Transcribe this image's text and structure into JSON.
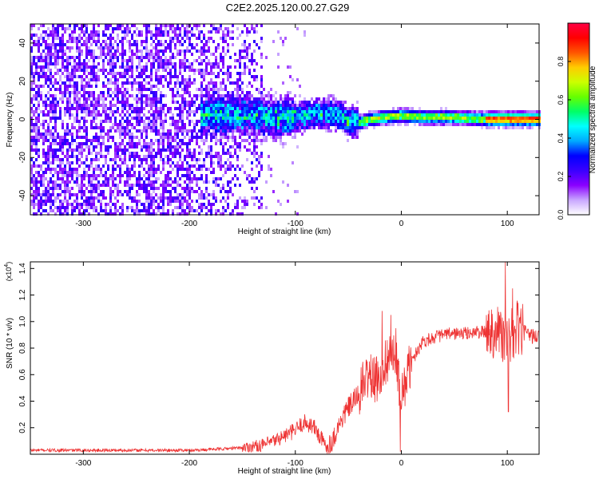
{
  "title": "C2E2.2025.120.00.27.G29",
  "chart_data": [
    {
      "type": "heatmap",
      "xlabel": "Height of straight line (km)",
      "ylabel": "Frequency (Hz)",
      "xlim": [
        -350,
        130
      ],
      "ylim": [
        -50,
        50
      ],
      "xticks": [
        -300,
        -200,
        -100,
        0,
        100
      ],
      "xtick_labels": [
        "-300",
        "-200",
        "-100",
        "0",
        "100"
      ],
      "yticks": [
        -40,
        -20,
        0,
        20,
        40
      ],
      "ytick_labels": [
        "-40",
        "-20",
        "0",
        "20",
        "40"
      ],
      "colorbar": {
        "label": "Normalized spectral amplitude",
        "range": [
          0,
          1
        ],
        "ticks": [
          0.0,
          0.2,
          0.4,
          0.6,
          0.8
        ],
        "tick_labels": [
          "0.0",
          "0.2",
          "0.4",
          "0.6",
          "0.8"
        ],
        "colors": [
          "#ffffff",
          "#c8a6ff",
          "#8a00ff",
          "#3a00ff",
          "#0000ff",
          "#00aaff",
          "#00ffff",
          "#00ff66",
          "#66ff00",
          "#ccff00",
          "#ffcc00",
          "#ff5500",
          "#ff0000",
          "#ff0044"
        ]
      },
      "ridge": [
        {
          "x": -180,
          "y": 2
        },
        {
          "x": -150,
          "y": 2
        },
        {
          "x": -120,
          "y": 1
        },
        {
          "x": -100,
          "y": 1
        },
        {
          "x": -80,
          "y": 3
        },
        {
          "x": -65,
          "y": 3
        },
        {
          "x": -50,
          "y": -1
        },
        {
          "x": -40,
          "y": -2
        },
        {
          "x": -30,
          "y": 0
        },
        {
          "x": -15,
          "y": 1
        },
        {
          "x": 0,
          "y": 2
        },
        {
          "x": 20,
          "y": 1
        },
        {
          "x": 50,
          "y": 1
        },
        {
          "x": 80,
          "y": 0
        },
        {
          "x": 100,
          "y": 0
        },
        {
          "x": 130,
          "y": 0
        }
      ],
      "grid": false
    },
    {
      "type": "line",
      "xlabel": "Height of straight line (km)",
      "ylabel": "SNR (10 * v/v)",
      "y_multiplier_label": "(x10",
      "y_multiplier_exp": "4",
      "y_multiplier_close": ")",
      "xlim": [
        -350,
        130
      ],
      "ylim": [
        0,
        1.45
      ],
      "xticks": [
        -300,
        -200,
        -100,
        0,
        100
      ],
      "xtick_labels": [
        "-300",
        "-200",
        "-100",
        "0",
        "100"
      ],
      "yticks": [
        0.2,
        0.4,
        0.6,
        0.8,
        1.0,
        1.2,
        1.4
      ],
      "ytick_labels": [
        "0.2",
        "0.4",
        "0.6",
        "0.8",
        "1.0",
        "1.2",
        "1.4"
      ],
      "color": "#ee3333",
      "series": [
        {
          "x": [
            -350,
            -300,
            -250,
            -200,
            -170,
            -150,
            -130,
            -120,
            -110,
            -100,
            -92,
            -85,
            -80,
            -75,
            -70,
            -65,
            -60,
            -55,
            -50,
            -45,
            -40,
            -35,
            -30,
            -25,
            -20,
            -15,
            -10,
            -5,
            0,
            5,
            10,
            15,
            20,
            30,
            40,
            50,
            60,
            70,
            80,
            85,
            90,
            95,
            100,
            105,
            110,
            115,
            120,
            130
          ],
          "y": [
            0.03,
            0.03,
            0.03,
            0.03,
            0.04,
            0.05,
            0.07,
            0.1,
            0.14,
            0.18,
            0.24,
            0.22,
            0.18,
            0.1,
            0.06,
            0.1,
            0.2,
            0.28,
            0.35,
            0.4,
            0.45,
            0.55,
            0.6,
            0.55,
            0.6,
            0.7,
            0.75,
            0.7,
            0.4,
            0.6,
            0.7,
            0.78,
            0.85,
            0.88,
            0.9,
            0.91,
            0.91,
            0.92,
            0.92,
            0.93,
            0.95,
            0.9,
            0.8,
            0.9,
            0.95,
            0.92,
            0.9,
            0.88
          ]
        }
      ],
      "spikes": [
        {
          "x": -18,
          "y": 1.08
        },
        {
          "x": -10,
          "y": 1.05
        },
        {
          "x": -5,
          "y": 0.95
        },
        {
          "x": -1,
          "y": 0.02
        },
        {
          "x": 98,
          "y": 1.45
        },
        {
          "x": 101,
          "y": 0.32
        },
        {
          "x": 105,
          "y": 1.25
        }
      ],
      "grid": false
    }
  ]
}
